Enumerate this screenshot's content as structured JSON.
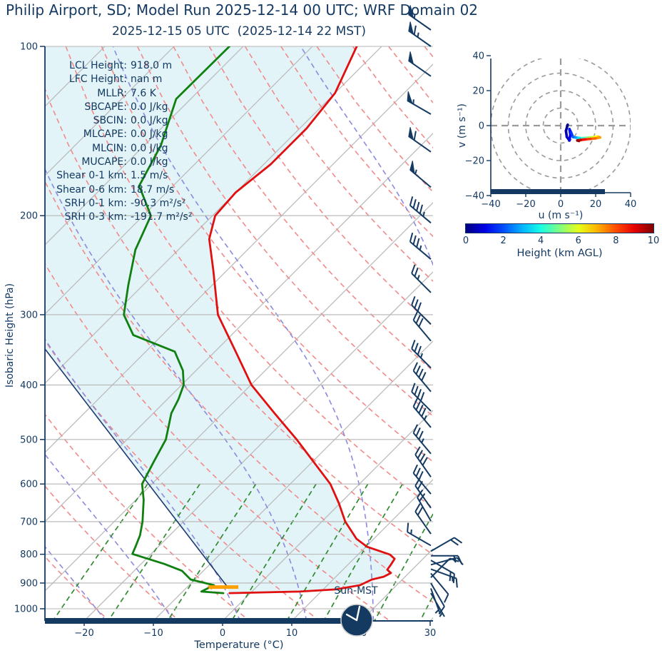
{
  "title": "Philip Airport, SD; Model Run 2025-12-14 00 UTC; WRF Domain 02",
  "subtitle": "2025-12-15 05 UTC  (2025-12-14 22 MST)",
  "stats": [
    {
      "label": "LCL Height",
      "value": "918.0 m"
    },
    {
      "label": "LFC Height",
      "value": "nan m"
    },
    {
      "label": "MLLR",
      "value": "7.6 K"
    },
    {
      "label": "SBCAPE",
      "value": "0.0 J/kg"
    },
    {
      "label": "SBCIN",
      "value": "0.0 J/kg"
    },
    {
      "label": "MLCAPE",
      "value": "0.0 J/kg"
    },
    {
      "label": "MLCIN",
      "value": "0.0 J/kg"
    },
    {
      "label": "MUCAPE",
      "value": "0.0 J/kg"
    },
    {
      "label": "Shear 0-1 km",
      "value": "1.5 m/s"
    },
    {
      "label": "Shear 0-6 km",
      "value": "18.7 m/s"
    },
    {
      "label": "SRH 0-1 km",
      "value": "-90.3 m²/s²"
    },
    {
      "label": "SRH 0-3 km",
      "value": "-191.7 m²/s²"
    }
  ],
  "skewt_axes": {
    "ylabel": "Isobaric Height (hPa)",
    "xlabel": "Temperature (°C)",
    "pressure_ticks": [
      100,
      200,
      300,
      400,
      500,
      600,
      700,
      800,
      900,
      1000
    ],
    "temp_ticks": [
      -20,
      -10,
      0,
      10,
      20,
      30
    ]
  },
  "surface_label": "Sun-MST",
  "hodograph": {
    "xlabel": "u (m s⁻¹)",
    "ylabel": "v (m s⁻¹)",
    "ticks": [
      -40,
      -20,
      0,
      20,
      40
    ],
    "ring_radii": [
      10,
      20,
      30,
      40
    ]
  },
  "colorbar": {
    "label": "Height (km AGL)",
    "ticks": [
      0,
      2,
      4,
      6,
      8,
      10
    ],
    "min": 0,
    "max": 10,
    "cmap": "jet"
  },
  "chart_data": {
    "type": "skewt-sounding",
    "pressure_range_hPa": [
      100,
      1050
    ],
    "temperature_axis_range_C": [
      -25.5,
      30.5
    ],
    "temperature_profile": [
      [
        100,
        -63.6
      ],
      [
        121,
        -60.0
      ],
      [
        140,
        -59.0
      ],
      [
        162,
        -59.0
      ],
      [
        182,
        -60.0
      ],
      [
        200,
        -59.6
      ],
      [
        220,
        -57.1
      ],
      [
        250,
        -52.0
      ],
      [
        300,
        -44.9
      ],
      [
        349,
        -37.0
      ],
      [
        400,
        -29.9
      ],
      [
        449,
        -22.5
      ],
      [
        500,
        -15.5
      ],
      [
        549,
        -9.7
      ],
      [
        600,
        -4.2
      ],
      [
        649,
        -0.2
      ],
      [
        700,
        3.4
      ],
      [
        751,
        7.5
      ],
      [
        776,
        10.2
      ],
      [
        801,
        14.6
      ],
      [
        815,
        15.9
      ],
      [
        835,
        16.2
      ],
      [
        852,
        16.4
      ],
      [
        864,
        17.4
      ],
      [
        877,
        16.9
      ],
      [
        887,
        15.6
      ],
      [
        908,
        14.7
      ],
      [
        924,
        11.8
      ],
      [
        932,
        6.9
      ],
      [
        938,
        -3.0
      ]
    ],
    "dewpoint_profile": [
      [
        100,
        -82.0
      ],
      [
        124,
        -82.1
      ],
      [
        150,
        -77.6
      ],
      [
        177,
        -74.9
      ],
      [
        200,
        -68.9
      ],
      [
        230,
        -66.2
      ],
      [
        266,
        -62.1
      ],
      [
        300,
        -58.5
      ],
      [
        326,
        -54.2
      ],
      [
        349,
        -45.8
      ],
      [
        377,
        -41.9
      ],
      [
        400,
        -39.7
      ],
      [
        424,
        -38.4
      ],
      [
        449,
        -37.4
      ],
      [
        500,
        -34.4
      ],
      [
        549,
        -32.9
      ],
      [
        600,
        -31.4
      ],
      [
        640,
        -28.9
      ],
      [
        700,
        -25.9
      ],
      [
        740,
        -24.3
      ],
      [
        772,
        -23.4
      ],
      [
        799,
        -22.7
      ],
      [
        832,
        -16.7
      ],
      [
        856,
        -13.1
      ],
      [
        887,
        -10.6
      ],
      [
        908,
        -6.4
      ],
      [
        932,
        -7.3
      ],
      [
        938,
        -3.9
      ]
    ],
    "parcel_line": [
      [
        913,
        -4.3
      ],
      [
        346,
        -64.8
      ]
    ],
    "surface_marker": {
      "pressure": 915,
      "t_from": -6.9,
      "t_to": -2.6
    },
    "wind_barbs": [
      [
        100,
        65,
        305
      ],
      [
        113,
        50,
        305
      ],
      [
        132,
        55,
        300
      ],
      [
        154,
        60,
        305
      ],
      [
        178,
        55,
        310
      ],
      [
        206,
        45,
        310
      ],
      [
        239,
        35,
        310
      ],
      [
        274,
        25,
        315
      ],
      [
        312,
        30,
        315
      ],
      [
        334,
        30,
        320
      ],
      [
        373,
        35,
        315
      ],
      [
        411,
        40,
        320
      ],
      [
        445,
        40,
        315
      ],
      [
        476,
        45,
        320
      ],
      [
        530,
        35,
        320
      ],
      [
        583,
        40,
        325
      ],
      [
        625,
        30,
        320
      ],
      [
        662,
        20,
        325
      ],
      [
        698,
        20,
        330
      ],
      [
        736,
        20,
        325
      ],
      [
        772,
        15,
        300
      ],
      [
        790,
        20,
        60
      ],
      [
        805,
        15,
        90
      ],
      [
        820,
        20,
        120
      ],
      [
        835,
        15,
        75
      ],
      [
        850,
        15,
        110
      ],
      [
        865,
        10,
        140
      ],
      [
        880,
        10,
        45
      ],
      [
        900,
        10,
        150
      ],
      [
        920,
        5,
        160
      ],
      [
        938,
        5,
        150
      ]
    ],
    "title_barb": {
      "kt": 55,
      "dir": 305
    },
    "hodograph_trace_km_u_v": [
      [
        0,
        4,
        0.5
      ],
      [
        0.3,
        3,
        -3
      ],
      [
        0.6,
        3.5,
        -6.5
      ],
      [
        0.9,
        5,
        -8.5
      ],
      [
        1.1,
        5.5,
        -5
      ],
      [
        1.3,
        5,
        -2
      ],
      [
        1.6,
        6,
        -4
      ],
      [
        2,
        7,
        -6.5
      ],
      [
        2.5,
        8.5,
        -6.8
      ],
      [
        3,
        10,
        -7
      ],
      [
        4,
        12,
        -7.2
      ],
      [
        4.5,
        14.5,
        -7
      ],
      [
        5.5,
        17,
        -6.8
      ],
      [
        6,
        19.5,
        -6.5
      ],
      [
        6.5,
        21.5,
        -6.3
      ],
      [
        7,
        22.5,
        -6.8
      ],
      [
        7.5,
        20,
        -7.3
      ],
      [
        8,
        17,
        -7.6
      ],
      [
        8.5,
        14,
        -7.9
      ],
      [
        9,
        11.5,
        -8.2
      ],
      [
        9.5,
        9.5,
        -8.5
      ],
      [
        10,
        10.5,
        -8.8
      ]
    ],
    "background_lines": {
      "isotherms_C_step": 10,
      "dry_adiabats_C_step": 10,
      "moist_adiabats_C_step": 10,
      "mixing_ratio_g_kg": [
        0.5,
        1,
        2,
        4,
        7,
        10,
        16,
        24
      ]
    },
    "clock_time": "22:00"
  },
  "colors": {
    "navy": "#143a62",
    "temperature": "#e01010",
    "dewpoint": "#108010",
    "parcel": "#1d3a6e",
    "fill": "#e2f4f8",
    "isotherm": "#b9b9b9",
    "grid": "#b5b5b5",
    "dry_adiabat": "#f28a8a",
    "moist_adiabat": "#8a8ae0",
    "mixing_ratio": "#2e8b2e",
    "marker_orange": "#ffa000",
    "ring_gray": "#9a9a9a"
  }
}
